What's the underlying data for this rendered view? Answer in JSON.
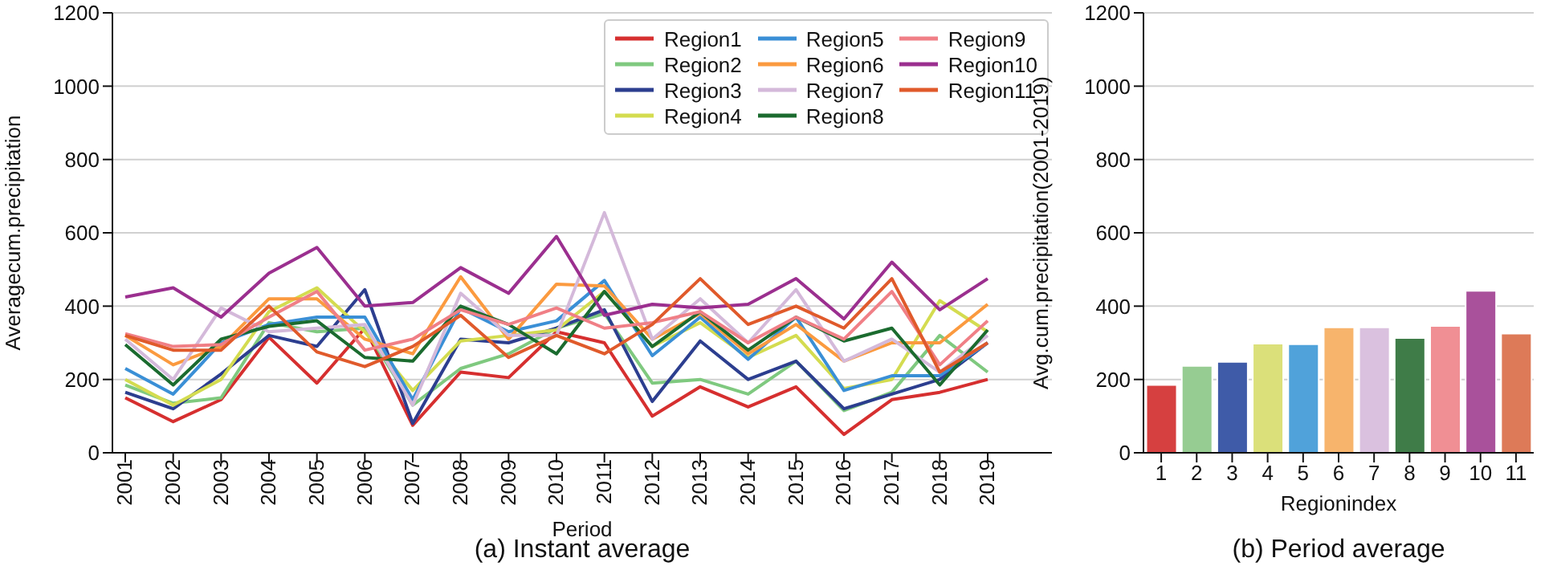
{
  "chart_data": [
    {
      "type": "line",
      "title": "(a) Instant average",
      "xlabel": "Period",
      "ylabel": "Averagecum.precipitation",
      "categories": [
        "2001",
        "2002",
        "2003",
        "2004",
        "2005",
        "2006",
        "2007",
        "2008",
        "2009",
        "2010",
        "2011",
        "2012",
        "2013",
        "2014",
        "2015",
        "2016",
        "2017",
        "2018",
        "2019"
      ],
      "ylim": [
        0,
        1200
      ],
      "yticks": [
        0,
        200,
        400,
        600,
        800,
        1000,
        1200
      ],
      "grid": "y",
      "legend": "top right",
      "marker": "none",
      "line_style": "solid",
      "series": [
        {
          "name": "Region1",
          "color": "#d62f2f",
          "values": [
            150,
            85,
            145,
            315,
            190,
            340,
            75,
            220,
            205,
            330,
            300,
            100,
            180,
            125,
            180,
            50,
            145,
            165,
            200
          ]
        },
        {
          "name": "Region2",
          "color": "#7fc97f",
          "values": [
            185,
            135,
            150,
            355,
            330,
            340,
            130,
            230,
            270,
            340,
            380,
            190,
            200,
            160,
            250,
            115,
            165,
            320,
            220
          ]
        },
        {
          "name": "Region3",
          "color": "#2c3e8f",
          "values": [
            165,
            120,
            215,
            320,
            290,
            445,
            80,
            310,
            300,
            340,
            390,
            140,
            305,
            200,
            250,
            120,
            160,
            200,
            300
          ]
        },
        {
          "name": "Region4",
          "color": "#d4dc50",
          "values": [
            200,
            130,
            200,
            385,
            450,
            330,
            170,
            305,
            320,
            335,
            440,
            290,
            355,
            260,
            320,
            175,
            200,
            415,
            330
          ]
        },
        {
          "name": "Region5",
          "color": "#3a8fd6",
          "values": [
            230,
            160,
            300,
            350,
            370,
            370,
            145,
            395,
            330,
            360,
            470,
            265,
            370,
            255,
            370,
            170,
            210,
            210,
            300
          ]
        },
        {
          "name": "Region6",
          "color": "#fb9a3f",
          "values": [
            320,
            240,
            290,
            420,
            420,
            310,
            270,
            480,
            310,
            460,
            455,
            310,
            380,
            270,
            350,
            250,
            300,
            300,
            405
          ]
        },
        {
          "name": "Region7",
          "color": "#d4b9da",
          "values": [
            310,
            200,
            395,
            330,
            340,
            350,
            130,
            435,
            320,
            320,
            655,
            310,
            420,
            300,
            445,
            250,
            310,
            220,
            320
          ]
        },
        {
          "name": "Region8",
          "color": "#1b6b2f",
          "values": [
            295,
            185,
            310,
            345,
            360,
            260,
            250,
            400,
            350,
            270,
            440,
            290,
            385,
            280,
            370,
            305,
            340,
            185,
            335
          ]
        },
        {
          "name": "Region9",
          "color": "#f07f86",
          "values": [
            325,
            290,
            295,
            370,
            440,
            280,
            310,
            390,
            350,
            395,
            340,
            355,
            385,
            300,
            370,
            310,
            440,
            240,
            360
          ]
        },
        {
          "name": "Region10",
          "color": "#9b2f8f",
          "values": [
            425,
            450,
            370,
            490,
            560,
            400,
            410,
            505,
            435,
            590,
            375,
            405,
            395,
            405,
            475,
            365,
            520,
            390,
            475
          ]
        },
        {
          "name": "Region11",
          "color": "#e05a2b",
          "values": [
            320,
            280,
            280,
            400,
            275,
            235,
            290,
            375,
            260,
            320,
            270,
            350,
            475,
            350,
            400,
            340,
            475,
            220,
            300
          ]
        }
      ]
    },
    {
      "type": "bar",
      "title": "(b) Period average",
      "xlabel": "Regionindex",
      "ylabel": "Avg.cum.precipitation(2001-2019)",
      "categories": [
        "1",
        "2",
        "3",
        "4",
        "5",
        "6",
        "7",
        "8",
        "9",
        "10",
        "11"
      ],
      "values": [
        185,
        237,
        248,
        298,
        296,
        342,
        342,
        313,
        346,
        442,
        325
      ],
      "colors": [
        "#d64040",
        "#96cc92",
        "#3f5ba8",
        "#dbe07a",
        "#50a2da",
        "#f7b46c",
        "#dac1df",
        "#3f7c48",
        "#f08f94",
        "#a9519b",
        "#dd7a58"
      ],
      "ylim": [
        0,
        1200
      ],
      "yticks": [
        0,
        200,
        400,
        600,
        800,
        1000,
        1200
      ],
      "grid": "y"
    }
  ]
}
